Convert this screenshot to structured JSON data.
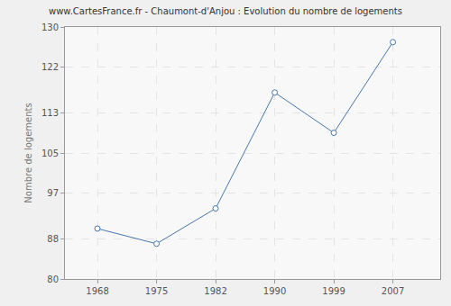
{
  "chart_data": {
    "type": "line",
    "title": "www.CartesFrance.fr - Chaumont-d'Anjou : Evolution du nombre de logements",
    "y_label": "Nombre de logements",
    "categories": [
      "1968",
      "1975",
      "1982",
      "1990",
      "1999",
      "2007"
    ],
    "values": [
      90,
      87,
      94,
      117,
      109,
      127
    ],
    "color": "#4a77a8",
    "marker": "circle",
    "ylim": [
      80,
      130
    ],
    "yticks": [
      80,
      88,
      97,
      105,
      113,
      122,
      130
    ],
    "grid": true
  }
}
